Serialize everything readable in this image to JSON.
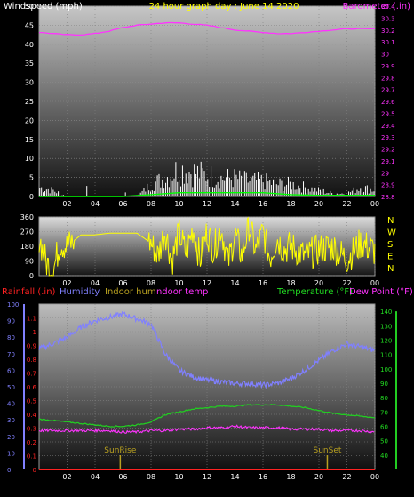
{
  "chart_data": [
    {
      "type": "line",
      "title": "24 hour graph day : June 14 2020",
      "left_axis": {
        "label": "Windspeed (mph)",
        "ylim": [
          0,
          50
        ],
        "ticks": [
          "0",
          "5",
          "10",
          "15",
          "20",
          "25",
          "30",
          "35",
          "40",
          "45",
          "50"
        ]
      },
      "right_axis": {
        "label": "Barometer (.in)",
        "ylim": [
          28.8,
          30.4
        ],
        "ticks": [
          "28.8",
          "28.9",
          "29",
          "29.1",
          "29.2",
          "29.3",
          "29.4",
          "29.5",
          "29.6",
          "29.7",
          "29.8",
          "29.9",
          "30",
          "30.1",
          "30.2",
          "30.3",
          "30.4"
        ]
      },
      "x": {
        "range": [
          0,
          24
        ],
        "ticks": [
          "02",
          "04",
          "06",
          "08",
          "10",
          "12",
          "14",
          "16",
          "18",
          "20",
          "22",
          "00"
        ]
      },
      "series": [
        {
          "name": "Barometer (.in)",
          "axis": "right",
          "color": "#ff33ff",
          "x": [
            0,
            1,
            2,
            3,
            4,
            5,
            6,
            7,
            8,
            9,
            10,
            11,
            12,
            13,
            14,
            15,
            16,
            17,
            18,
            19,
            20,
            21,
            22,
            23,
            24
          ],
          "values": [
            30.18,
            30.17,
            30.16,
            30.16,
            30.17,
            30.19,
            30.22,
            30.24,
            30.25,
            30.26,
            30.26,
            30.25,
            30.24,
            30.22,
            30.2,
            30.19,
            30.18,
            30.17,
            30.17,
            30.18,
            30.19,
            30.2,
            30.21,
            30.21,
            30.21
          ]
        },
        {
          "name": "Windspeed gust",
          "axis": "left",
          "color": "#ffffff",
          "x": [
            0,
            1,
            2,
            3,
            4,
            5,
            6,
            7,
            8,
            9,
            10,
            11,
            12,
            13,
            14,
            15,
            16,
            17,
            18,
            19,
            20,
            21,
            22,
            23,
            24
          ],
          "values": [
            3,
            2,
            0,
            0,
            0,
            0,
            0,
            0,
            4,
            6,
            9,
            8,
            7,
            6,
            6,
            5,
            5,
            4,
            4,
            3,
            2,
            1,
            1,
            3,
            2
          ]
        },
        {
          "name": "Windspeed average",
          "axis": "left",
          "color": "#00ff00",
          "x": [
            0,
            2,
            4,
            6,
            8,
            10,
            12,
            14,
            16,
            18,
            20,
            22,
            24
          ],
          "values": [
            0,
            0,
            0,
            0,
            0.5,
            1,
            1,
            1,
            1,
            0.5,
            0.3,
            0.3,
            0.3
          ]
        }
      ]
    },
    {
      "type": "line",
      "left_axis": {
        "ylim": [
          0,
          360
        ],
        "ticks": [
          "0",
          "90",
          "180",
          "270",
          "360"
        ]
      },
      "right_axis": {
        "labels": [
          "N",
          "W",
          "S",
          "E",
          "N"
        ]
      },
      "x": {
        "range": [
          0,
          24
        ],
        "ticks": [
          "02",
          "04",
          "06",
          "08",
          "10",
          "12",
          "14",
          "16",
          "18",
          "20",
          "22",
          "00"
        ]
      },
      "series": [
        {
          "name": "Wind direction",
          "color": "#ffff00",
          "x": [
            0,
            0.5,
            1,
            1.5,
            2,
            3,
            4,
            5,
            6,
            7,
            8,
            8.5,
            9,
            9.5,
            10,
            10.5,
            11,
            11.5,
            12,
            12.5,
            13,
            13.5,
            14,
            14.5,
            15,
            15.5,
            16,
            16.5,
            17,
            17.5,
            18,
            18.5,
            19,
            20,
            21,
            22,
            23,
            24
          ],
          "values": [
            240,
            80,
            30,
            200,
            180,
            250,
            250,
            260,
            260,
            260,
            200,
            120,
            280,
            90,
            260,
            140,
            290,
            100,
            270,
            160,
            300,
            80,
            250,
            120,
            310,
            150,
            270,
            110,
            230,
            160,
            180,
            150,
            120,
            160,
            180,
            100,
            200,
            150
          ]
        }
      ]
    },
    {
      "type": "line",
      "left_axis": {
        "label": "Rainfall (.in)",
        "ylim": [
          0,
          1.2
        ],
        "ticks": [
          "0",
          "0.1",
          "0.2",
          "0.3",
          "0.4",
          "0.5",
          "0.6",
          "0.7",
          "0.8",
          "0.9",
          "1",
          "1.1"
        ]
      },
      "left_axis_2": {
        "label": "Humidity",
        "ylim": [
          0,
          100
        ],
        "ticks": [
          "0",
          "10",
          "20",
          "30",
          "40",
          "50",
          "60",
          "70",
          "80",
          "90",
          "100"
        ]
      },
      "right_axis": {
        "label": "Temperature (°F)",
        "ylim": [
          30,
          145
        ],
        "ticks": [
          "40",
          "50",
          "60",
          "70",
          "80",
          "90",
          "100",
          "110",
          "120",
          "130",
          "140"
        ]
      },
      "legend": [
        "Rainfall (.in)",
        "Humidity",
        "Indoor hum",
        "Indoor temp",
        "Temperature (°F)",
        "Dew Point (°F)"
      ],
      "x": {
        "range": [
          0,
          24
        ],
        "ticks": [
          "02",
          "04",
          "06",
          "08",
          "10",
          "12",
          "14",
          "16",
          "18",
          "20",
          "22",
          "00"
        ]
      },
      "annotations": [
        {
          "text": "SunRise",
          "x": 5.8
        },
        {
          "text": "SunSet",
          "x": 20.6
        }
      ],
      "series": [
        {
          "name": "Humidity",
          "axis": "left2",
          "color": "#8080ff",
          "x": [
            0,
            1,
            2,
            3,
            4,
            5,
            6,
            7,
            8,
            9,
            10,
            11,
            12,
            13,
            14,
            15,
            16,
            17,
            18,
            19,
            20,
            21,
            22,
            23,
            24
          ],
          "values": [
            73,
            76,
            80,
            86,
            90,
            92,
            94,
            91,
            88,
            70,
            60,
            56,
            54,
            53,
            52,
            52,
            51,
            52,
            55,
            60,
            66,
            72,
            76,
            74,
            72
          ]
        },
        {
          "name": "Temperature (°F)",
          "axis": "right",
          "color": "#22cc22",
          "x": [
            0,
            1,
            2,
            3,
            4,
            5,
            6,
            7,
            8,
            9,
            10,
            11,
            12,
            13,
            14,
            15,
            16,
            17,
            18,
            19,
            20,
            21,
            22,
            23,
            24
          ],
          "values": [
            65,
            64,
            63,
            62,
            61,
            60,
            60,
            61,
            63,
            68,
            70,
            72,
            73,
            74,
            74,
            75,
            75,
            75,
            74,
            73,
            71,
            69,
            68,
            67,
            66
          ]
        },
        {
          "name": "Dew Point (°F)",
          "axis": "right",
          "color": "#ff33ff",
          "x": [
            0,
            1,
            2,
            3,
            4,
            5,
            6,
            7,
            8,
            9,
            10,
            11,
            12,
            13,
            14,
            15,
            16,
            17,
            18,
            19,
            20,
            21,
            22,
            23,
            24
          ],
          "values": [
            57,
            57,
            57,
            57,
            57,
            57,
            56,
            56,
            57,
            57,
            58,
            58,
            59,
            59,
            60,
            59,
            59,
            59,
            58,
            58,
            58,
            57,
            57,
            57,
            56
          ]
        },
        {
          "name": "Rainfall (.in)",
          "axis": "left",
          "color": "#ff2222",
          "x": [
            0,
            24
          ],
          "values": [
            0,
            0
          ]
        }
      ]
    }
  ]
}
